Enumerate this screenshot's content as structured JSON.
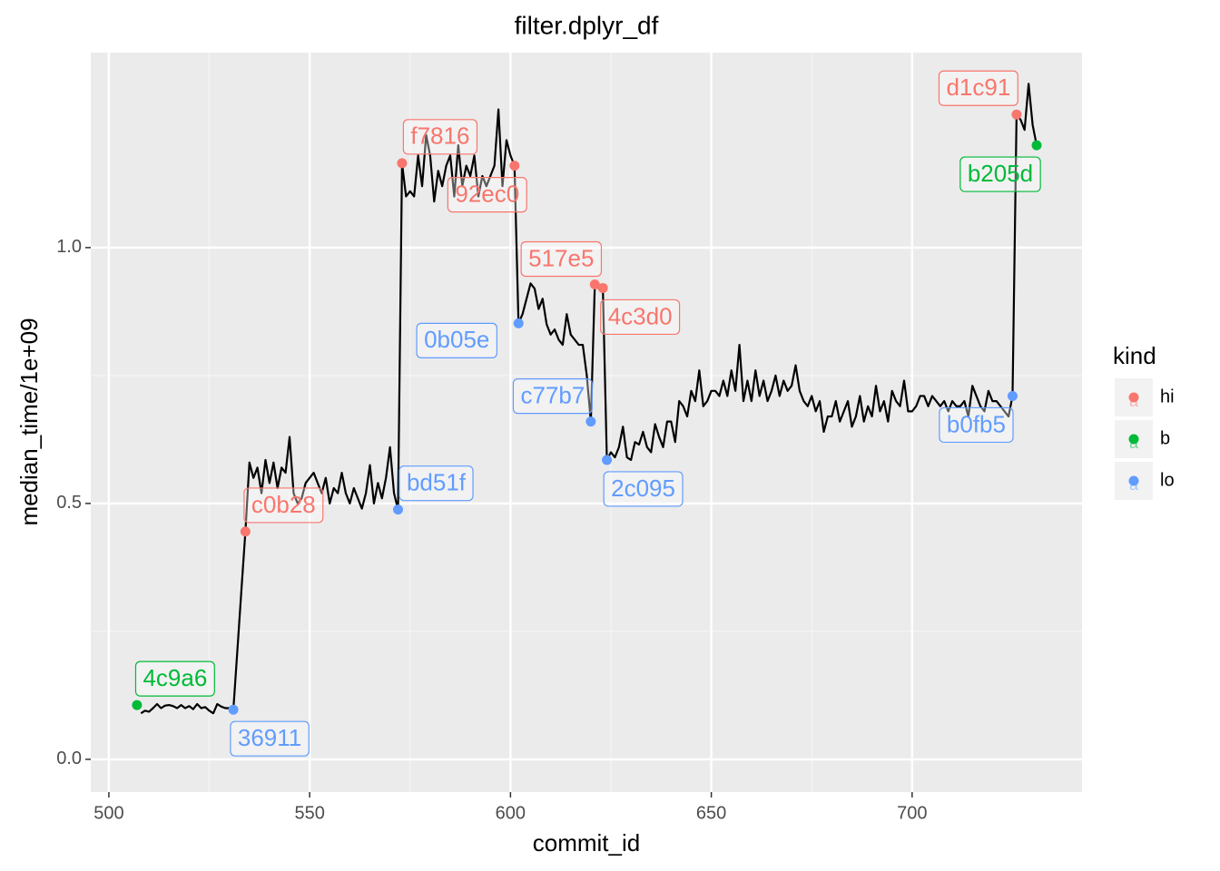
{
  "chart_data": {
    "type": "line",
    "title": "filter.dplyr_df",
    "x_label": "commit_id",
    "y_label": "median_time/1e+09",
    "xlim": [
      495.5,
      742.3
    ],
    "ylim": [
      -0.064,
      1.381
    ],
    "xticks": [
      500,
      550,
      600,
      650,
      700
    ],
    "yticks": [
      {
        "value": 0,
        "label": "0.0"
      },
      {
        "value": 0.5,
        "label": "0.5"
      },
      {
        "value": 1,
        "label": "1.0"
      }
    ],
    "grid": true,
    "color": "#000000",
    "x": [
      508,
      509,
      510,
      511,
      512,
      513,
      514,
      515,
      516,
      517,
      518,
      519,
      520,
      521,
      522,
      523,
      524,
      525,
      526,
      527,
      528,
      529,
      530,
      531,
      532,
      533,
      534,
      535,
      536,
      537,
      538,
      539,
      540,
      541,
      542,
      543,
      544,
      545,
      546,
      547,
      548,
      549,
      550,
      551,
      552,
      553,
      554,
      555,
      556,
      557,
      558,
      559,
      560,
      561,
      562,
      563,
      564,
      565,
      566,
      567,
      568,
      569,
      570,
      571,
      572,
      573,
      574,
      575,
      576,
      577,
      578,
      579,
      580,
      581,
      582,
      583,
      584,
      585,
      586,
      587,
      588,
      589,
      590,
      591,
      592,
      593,
      594,
      595,
      596,
      597,
      598,
      599,
      600,
      601,
      602,
      603,
      604,
      605,
      606,
      607,
      608,
      609,
      610,
      611,
      612,
      613,
      614,
      615,
      616,
      617,
      618,
      619,
      620,
      621,
      622,
      623,
      624,
      625,
      626,
      627,
      628,
      629,
      630,
      631,
      632,
      633,
      634,
      635,
      636,
      637,
      638,
      639,
      640,
      641,
      642,
      643,
      644,
      645,
      646,
      647,
      648,
      649,
      650,
      651,
      652,
      653,
      654,
      655,
      656,
      657,
      658,
      659,
      660,
      661,
      662,
      663,
      664,
      665,
      666,
      667,
      668,
      669,
      670,
      671,
      672,
      673,
      674,
      675,
      676,
      677,
      678,
      679,
      680,
      681,
      682,
      683,
      684,
      685,
      686,
      687,
      688,
      689,
      690,
      691,
      692,
      693,
      694,
      695,
      696,
      697,
      698,
      699,
      700,
      701,
      702,
      703,
      704,
      705,
      706,
      707,
      708,
      709,
      710,
      711,
      712,
      713,
      714,
      715,
      716,
      717,
      718,
      719,
      720,
      721,
      722,
      723,
      724,
      725,
      726,
      727,
      728,
      729,
      730,
      731
    ],
    "values": [
      0.09,
      0.095,
      0.093,
      0.1,
      0.108,
      0.1,
      0.105,
      0.106,
      0.104,
      0.1,
      0.106,
      0.1,
      0.104,
      0.098,
      0.108,
      0.1,
      0.102,
      0.095,
      0.09,
      0.108,
      0.103,
      0.1,
      0.1,
      0.097,
      0.213,
      0.33,
      0.445,
      0.58,
      0.55,
      0.57,
      0.52,
      0.585,
      0.54,
      0.58,
      0.53,
      0.57,
      0.56,
      0.63,
      0.52,
      0.5,
      0.51,
      0.54,
      0.55,
      0.56,
      0.54,
      0.52,
      0.55,
      0.5,
      0.53,
      0.52,
      0.56,
      0.52,
      0.5,
      0.53,
      0.51,
      0.49,
      0.52,
      0.575,
      0.5,
      0.54,
      0.51,
      0.55,
      0.61,
      0.52,
      0.488,
      1.165,
      1.1,
      1.11,
      1.1,
      1.18,
      1.12,
      1.22,
      1.18,
      1.09,
      1.15,
      1.12,
      1.16,
      1.18,
      1.1,
      1.2,
      1.12,
      1.16,
      1.14,
      1.18,
      1.1,
      1.14,
      1.12,
      1.14,
      1.16,
      1.27,
      1.12,
      1.21,
      1.18,
      1.16,
      0.852,
      0.87,
      0.9,
      0.93,
      0.92,
      0.88,
      0.9,
      0.85,
      0.83,
      0.84,
      0.82,
      0.81,
      0.87,
      0.83,
      0.82,
      0.81,
      0.81,
      0.75,
      0.66,
      0.928,
      0.92,
      0.921,
      0.585,
      0.6,
      0.59,
      0.61,
      0.65,
      0.59,
      0.585,
      0.62,
      0.615,
      0.64,
      0.61,
      0.6,
      0.655,
      0.63,
      0.61,
      0.66,
      0.66,
      0.62,
      0.7,
      0.69,
      0.67,
      0.72,
      0.7,
      0.76,
      0.69,
      0.7,
      0.72,
      0.72,
      0.71,
      0.74,
      0.71,
      0.76,
      0.72,
      0.81,
      0.7,
      0.74,
      0.7,
      0.76,
      0.71,
      0.74,
      0.7,
      0.72,
      0.75,
      0.71,
      0.74,
      0.72,
      0.73,
      0.77,
      0.72,
      0.7,
      0.69,
      0.71,
      0.68,
      0.7,
      0.64,
      0.67,
      0.67,
      0.7,
      0.66,
      0.68,
      0.7,
      0.65,
      0.67,
      0.71,
      0.66,
      0.69,
      0.67,
      0.73,
      0.68,
      0.7,
      0.66,
      0.72,
      0.7,
      0.69,
      0.74,
      0.68,
      0.68,
      0.69,
      0.71,
      0.71,
      0.69,
      0.71,
      0.7,
      0.69,
      0.7,
      0.68,
      0.7,
      0.69,
      0.69,
      0.7,
      0.67,
      0.73,
      0.71,
      0.69,
      0.68,
      0.72,
      0.7,
      0.7,
      0.69,
      0.68,
      0.67,
      0.71,
      1.26,
      1.25,
      1.23,
      1.32,
      1.24,
      1.2
    ],
    "legend": {
      "title": "kind",
      "entries": [
        {
          "name": "hi",
          "color": "#F8766D"
        },
        {
          "name": "b",
          "color": "#00BA38"
        },
        {
          "name": "lo",
          "color": "#619CFF"
        }
      ]
    },
    "points": [
      {
        "label": "4c9a6",
        "kind": "b",
        "x": 507,
        "y": 0.106
      },
      {
        "label": "36911",
        "kind": "lo",
        "x": 531,
        "y": 0.097
      },
      {
        "label": "c0b28",
        "kind": "hi",
        "x": 534,
        "y": 0.445
      },
      {
        "label": "bd51f",
        "kind": "lo",
        "x": 572,
        "y": 0.488
      },
      {
        "label": "f7816",
        "kind": "hi",
        "x": 573,
        "y": 1.165
      },
      {
        "label": "92ec0",
        "kind": "hi",
        "x": 601,
        "y": 1.16
      },
      {
        "label": "0b05e",
        "kind": "lo",
        "x": 602,
        "y": 0.852
      },
      {
        "label": "517e5",
        "kind": "hi",
        "x": 621,
        "y": 0.928
      },
      {
        "label": "4c3d0",
        "kind": "hi",
        "x": 623,
        "y": 0.921
      },
      {
        "label": "c77b7",
        "kind": "lo",
        "x": 620,
        "y": 0.66
      },
      {
        "label": "2c095",
        "kind": "lo",
        "x": 624,
        "y": 0.585
      },
      {
        "label": "b0fb5",
        "kind": "lo",
        "x": 725,
        "y": 0.71
      },
      {
        "label": "d1c91",
        "kind": "hi",
        "x": 726,
        "y": 1.26
      },
      {
        "label": "b205d",
        "kind": "b",
        "x": 731,
        "y": 1.2
      }
    ]
  }
}
